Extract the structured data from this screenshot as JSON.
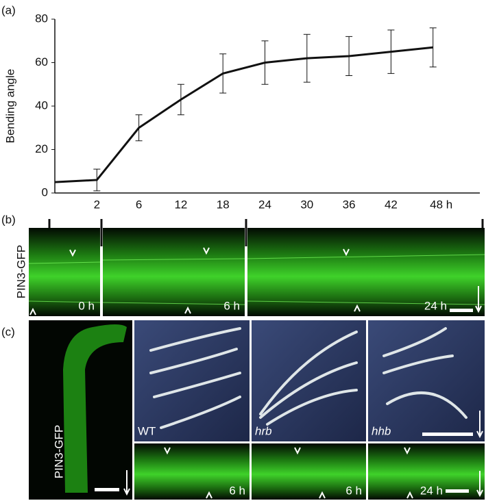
{
  "chart_data": {
    "type": "line",
    "ylabel": "Bending angle",
    "categories": [
      null,
      "2",
      "6",
      "12",
      "18",
      "24",
      "30",
      "36",
      "42",
      "48 h"
    ],
    "values": [
      5,
      6,
      30,
      43,
      55,
      60,
      62,
      63,
      65,
      67
    ],
    "errors": [
      null,
      5,
      6,
      7,
      9,
      10,
      11,
      9,
      10,
      9
    ],
    "color": "#111111",
    "ylim": [
      0,
      80
    ],
    "yticks": [
      0,
      20,
      40,
      60,
      80
    ],
    "grid": false
  },
  "panel_labels": [
    "(a)",
    "(b)",
    "(c)"
  ],
  "panel_b": {
    "stain_label": "PIN3-GFP",
    "time_labels": [
      "0 h",
      "6 h",
      "24 h"
    ]
  },
  "panel_c": {
    "stain_label": "PIN3-GFP",
    "genotype_labels": [
      "WT",
      "hrb",
      "hhb"
    ],
    "time_labels": [
      "6 h",
      "6 h",
      "24 h"
    ]
  }
}
